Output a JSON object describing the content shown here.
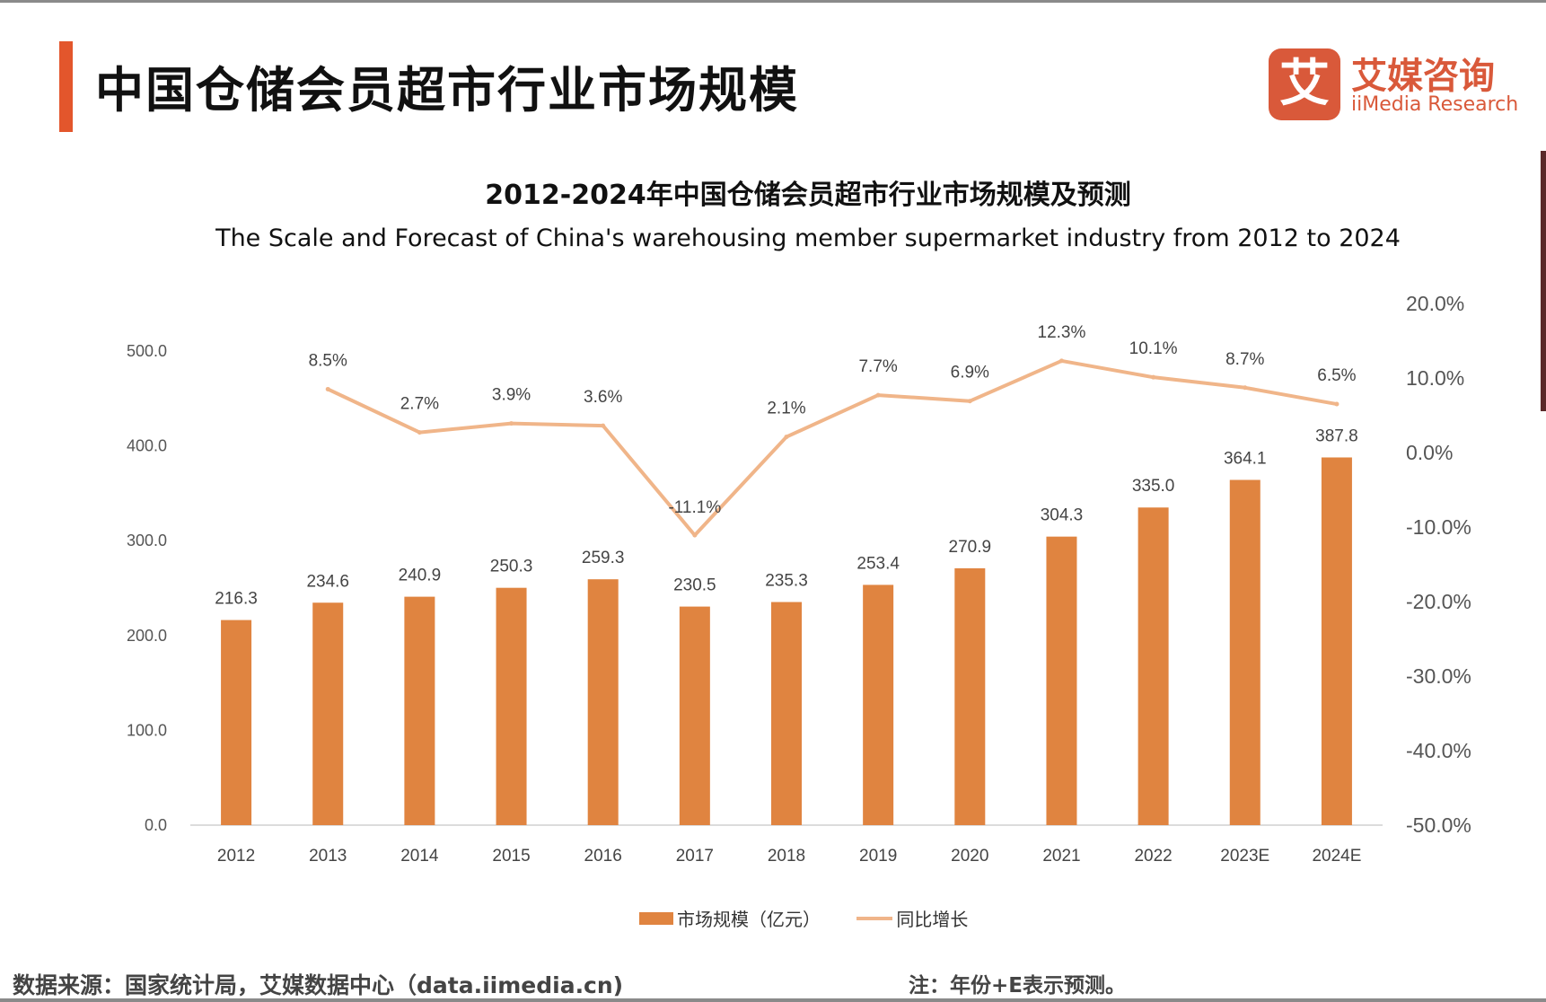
{
  "page": {
    "title": "中国仓储会员超市行业市场规模",
    "source": "数据来源：国家统计局，艾媒数据中心（data.iimedia.cn)",
    "note": "注：年份+E表示预测。"
  },
  "logo": {
    "mark": "艾",
    "name_cn": "艾媒咨询",
    "name_en": "iiMedia Research"
  },
  "colors": {
    "accent": "#e3562c",
    "bar": "#e08440",
    "line": "#f0b589",
    "brand": "#d9593a"
  },
  "chart_data": {
    "type": "bar+line",
    "title": "2012-2024年中国仓储会员超市行业市场规模及预测",
    "subtitle": "The Scale and Forecast of China's warehousing member supermarket industry from 2012 to 2024",
    "categories": [
      "2012",
      "2013",
      "2014",
      "2015",
      "2016",
      "2017",
      "2018",
      "2019",
      "2020",
      "2021",
      "2022",
      "2023E",
      "2024E"
    ],
    "series": [
      {
        "name": "市场规模（亿元）",
        "type": "bar",
        "axis": "left",
        "values": [
          216.3,
          234.6,
          240.9,
          250.3,
          259.3,
          230.5,
          235.3,
          253.4,
          270.9,
          304.3,
          335.0,
          364.1,
          387.8
        ],
        "labels": [
          "216.3",
          "234.6",
          "240.9",
          "250.3",
          "259.3",
          "230.5",
          "235.3",
          "253.4",
          "270.9",
          "304.3",
          "335.0",
          "364.1",
          "387.8"
        ]
      },
      {
        "name": "同比增长",
        "type": "line",
        "axis": "right",
        "values": [
          null,
          8.5,
          2.7,
          3.9,
          3.6,
          -11.1,
          2.1,
          7.7,
          6.9,
          12.3,
          10.1,
          8.7,
          6.5
        ],
        "labels": [
          "",
          "8.5%",
          "2.7%",
          "3.9%",
          "3.6%",
          "-11.1%",
          "2.1%",
          "7.7%",
          "6.9%",
          "12.3%",
          "10.1%",
          "8.7%",
          "6.5%"
        ]
      }
    ],
    "left_axis": {
      "ylim": [
        0,
        500
      ],
      "ticks": [
        0,
        100,
        200,
        300,
        400,
        500
      ],
      "tick_labels": [
        "0.0",
        "100.0",
        "200.0",
        "300.0",
        "400.0",
        "500.0"
      ]
    },
    "right_axis": {
      "ylim": [
        -50,
        20
      ],
      "ticks": [
        -50,
        -40,
        -30,
        -20,
        -10,
        0,
        10,
        20
      ],
      "tick_labels": [
        "-50.0%",
        "-40.0%",
        "-30.0%",
        "-20.0%",
        "-10.0%",
        "0.0%",
        "10.0%",
        "20.0%"
      ]
    },
    "legend": [
      "市场规模（亿元）",
      "同比增长"
    ],
    "legend_position": "bottom-center",
    "grid": false
  }
}
